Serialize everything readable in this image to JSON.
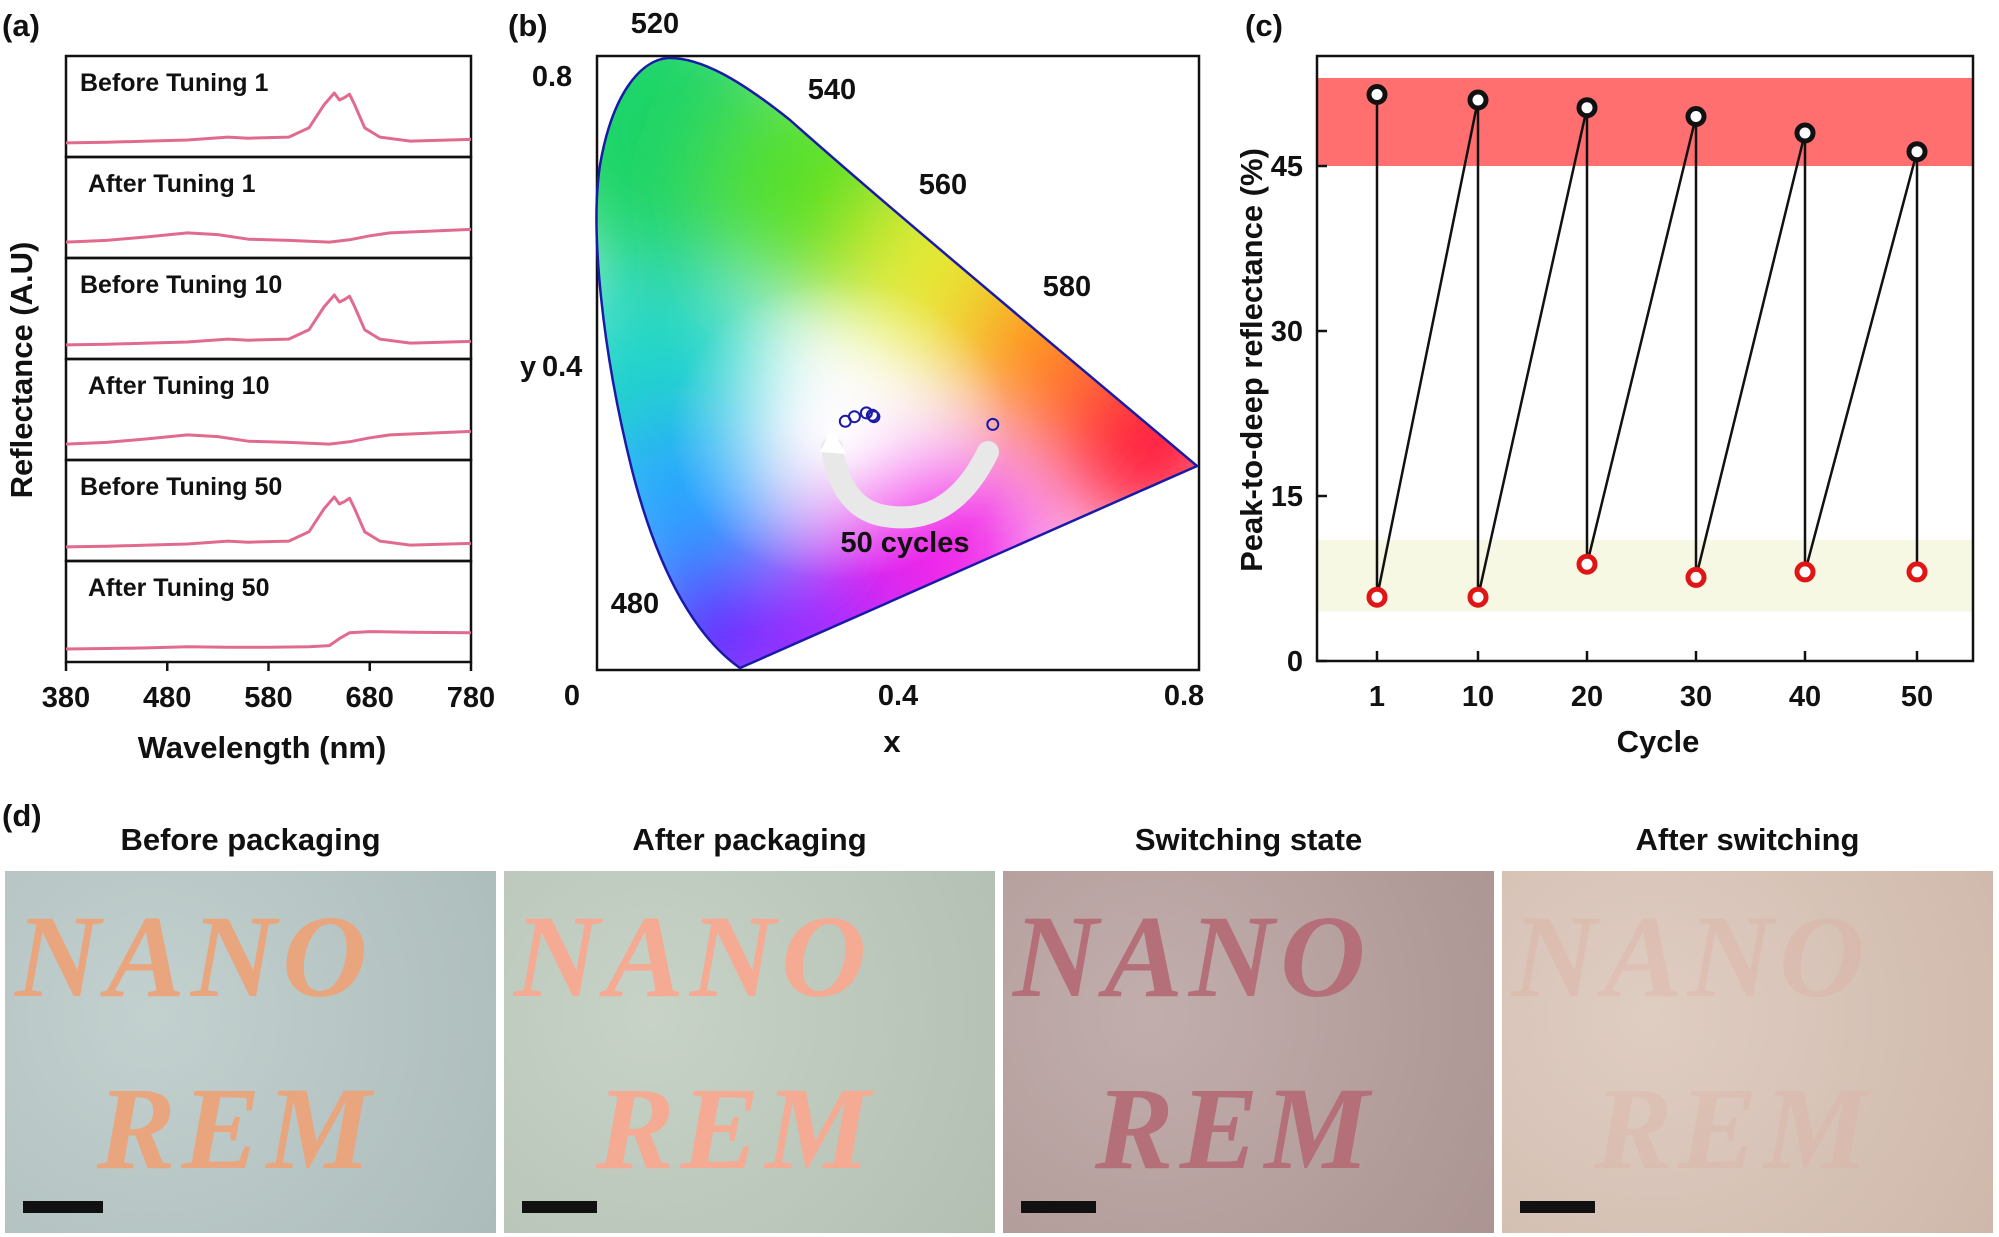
{
  "panel_letters": [
    "(a)",
    "(b)",
    "(c)",
    "(d)"
  ],
  "colors": {
    "spectrum": "#e06b8f",
    "axis": "#111111",
    "chroma_border": "#1a1aa8",
    "band_high": "#ff6f6f",
    "band_low": "#f6f8e4",
    "marker_high": "#111111",
    "marker_low": "#e01616"
  },
  "chart_data": [
    {
      "type": "line",
      "panel": "a",
      "title": "",
      "xlabel": "Wavelength (nm)",
      "ylabel": "Reflectance (A.U)",
      "xlim": [
        380,
        780
      ],
      "xticks": [
        "380",
        "480",
        "580",
        "680",
        "780"
      ],
      "series": [
        {
          "name": "Before Tuning 1",
          "x": [
            380,
            420,
            460,
            500,
            540,
            560,
            600,
            620,
            635,
            645,
            650,
            655,
            660,
            665,
            675,
            690,
            720,
            780
          ],
          "values": [
            0.14,
            0.15,
            0.17,
            0.19,
            0.24,
            0.22,
            0.24,
            0.4,
            0.8,
            1.0,
            0.88,
            0.92,
            0.98,
            0.8,
            0.4,
            0.24,
            0.17,
            0.2
          ]
        },
        {
          "name": "After Tuning 1",
          "x": [
            380,
            420,
            460,
            500,
            530,
            560,
            600,
            640,
            660,
            680,
            700,
            740,
            780
          ],
          "values": [
            0.17,
            0.2,
            0.26,
            0.33,
            0.3,
            0.22,
            0.2,
            0.17,
            0.21,
            0.28,
            0.33,
            0.36,
            0.39
          ]
        },
        {
          "name": "Before Tuning 10",
          "x": [
            380,
            420,
            460,
            500,
            540,
            560,
            600,
            620,
            635,
            645,
            650,
            655,
            660,
            665,
            675,
            690,
            720,
            780
          ],
          "values": [
            0.14,
            0.15,
            0.17,
            0.19,
            0.24,
            0.22,
            0.24,
            0.4,
            0.8,
            1.0,
            0.88,
            0.92,
            0.98,
            0.8,
            0.4,
            0.24,
            0.17,
            0.2
          ]
        },
        {
          "name": "After Tuning 10",
          "x": [
            380,
            420,
            460,
            500,
            530,
            560,
            600,
            640,
            660,
            680,
            700,
            740,
            780
          ],
          "values": [
            0.17,
            0.2,
            0.26,
            0.33,
            0.3,
            0.22,
            0.2,
            0.17,
            0.21,
            0.28,
            0.33,
            0.36,
            0.39
          ]
        },
        {
          "name": "Before Tuning 50",
          "x": [
            380,
            420,
            460,
            500,
            540,
            560,
            600,
            620,
            635,
            645,
            650,
            655,
            660,
            665,
            675,
            690,
            720,
            780
          ],
          "values": [
            0.14,
            0.15,
            0.17,
            0.19,
            0.24,
            0.22,
            0.24,
            0.4,
            0.8,
            1.0,
            0.88,
            0.92,
            0.98,
            0.8,
            0.4,
            0.24,
            0.17,
            0.2
          ]
        },
        {
          "name": "After Tuning 50",
          "x": [
            380,
            420,
            460,
            500,
            540,
            580,
            620,
            640,
            650,
            660,
            680,
            720,
            780
          ],
          "values": [
            0.12,
            0.13,
            0.14,
            0.16,
            0.15,
            0.15,
            0.16,
            0.18,
            0.3,
            0.4,
            0.42,
            0.41,
            0.4
          ]
        }
      ]
    },
    {
      "type": "scatter",
      "panel": "b",
      "title": "",
      "xlabel": "x",
      "ylabel": "y",
      "xlim": [
        0,
        0.8
      ],
      "ylim": [
        0,
        0.8
      ],
      "xticks": [
        "0",
        "0.4",
        "0.8"
      ],
      "yticks": [
        "0.4",
        "0.8"
      ],
      "wavelength_labels": [
        "520",
        "540",
        "560",
        "580",
        "480"
      ],
      "annotation": "50 cycles",
      "points": [
        {
          "x": 0.33,
          "y": 0.324
        },
        {
          "x": 0.342,
          "y": 0.33
        },
        {
          "x": 0.358,
          "y": 0.335
        },
        {
          "x": 0.368,
          "y": 0.33
        },
        {
          "x": 0.366,
          "y": 0.332
        },
        {
          "x": 0.526,
          "y": 0.32
        }
      ]
    },
    {
      "type": "scatter",
      "panel": "c",
      "title": "",
      "xlabel": "Cycle",
      "ylabel": "Peak-to-deep reflectance (%)",
      "ylim": [
        0,
        55
      ],
      "categories": [
        "1",
        "10",
        "20",
        "30",
        "40",
        "50"
      ],
      "yticks": [
        "0",
        "15",
        "30",
        "45"
      ],
      "bands": [
        {
          "from": 45,
          "to": 53
        },
        {
          "from": 4.5,
          "to": 11
        }
      ],
      "series": [
        {
          "name": "high",
          "values": [
            51.5,
            51,
            50.3,
            49.5,
            48,
            46.3
          ]
        },
        {
          "name": "low",
          "values": [
            5.8,
            5.8,
            8.8,
            7.6,
            8.1,
            8.1
          ]
        }
      ]
    }
  ],
  "panel_d": {
    "titles": [
      "Before packaging",
      "After packaging",
      "Switching state",
      "After switching"
    ],
    "word1": "NANO",
    "word2": "REM",
    "backgrounds": [
      "#b5c6c4",
      "#bcc9bb",
      "#b49c9a",
      "#d9c2b4"
    ],
    "text_colors": [
      "#e9a67e",
      "#f4aa93",
      "#b46f79",
      "#deaea0"
    ]
  }
}
